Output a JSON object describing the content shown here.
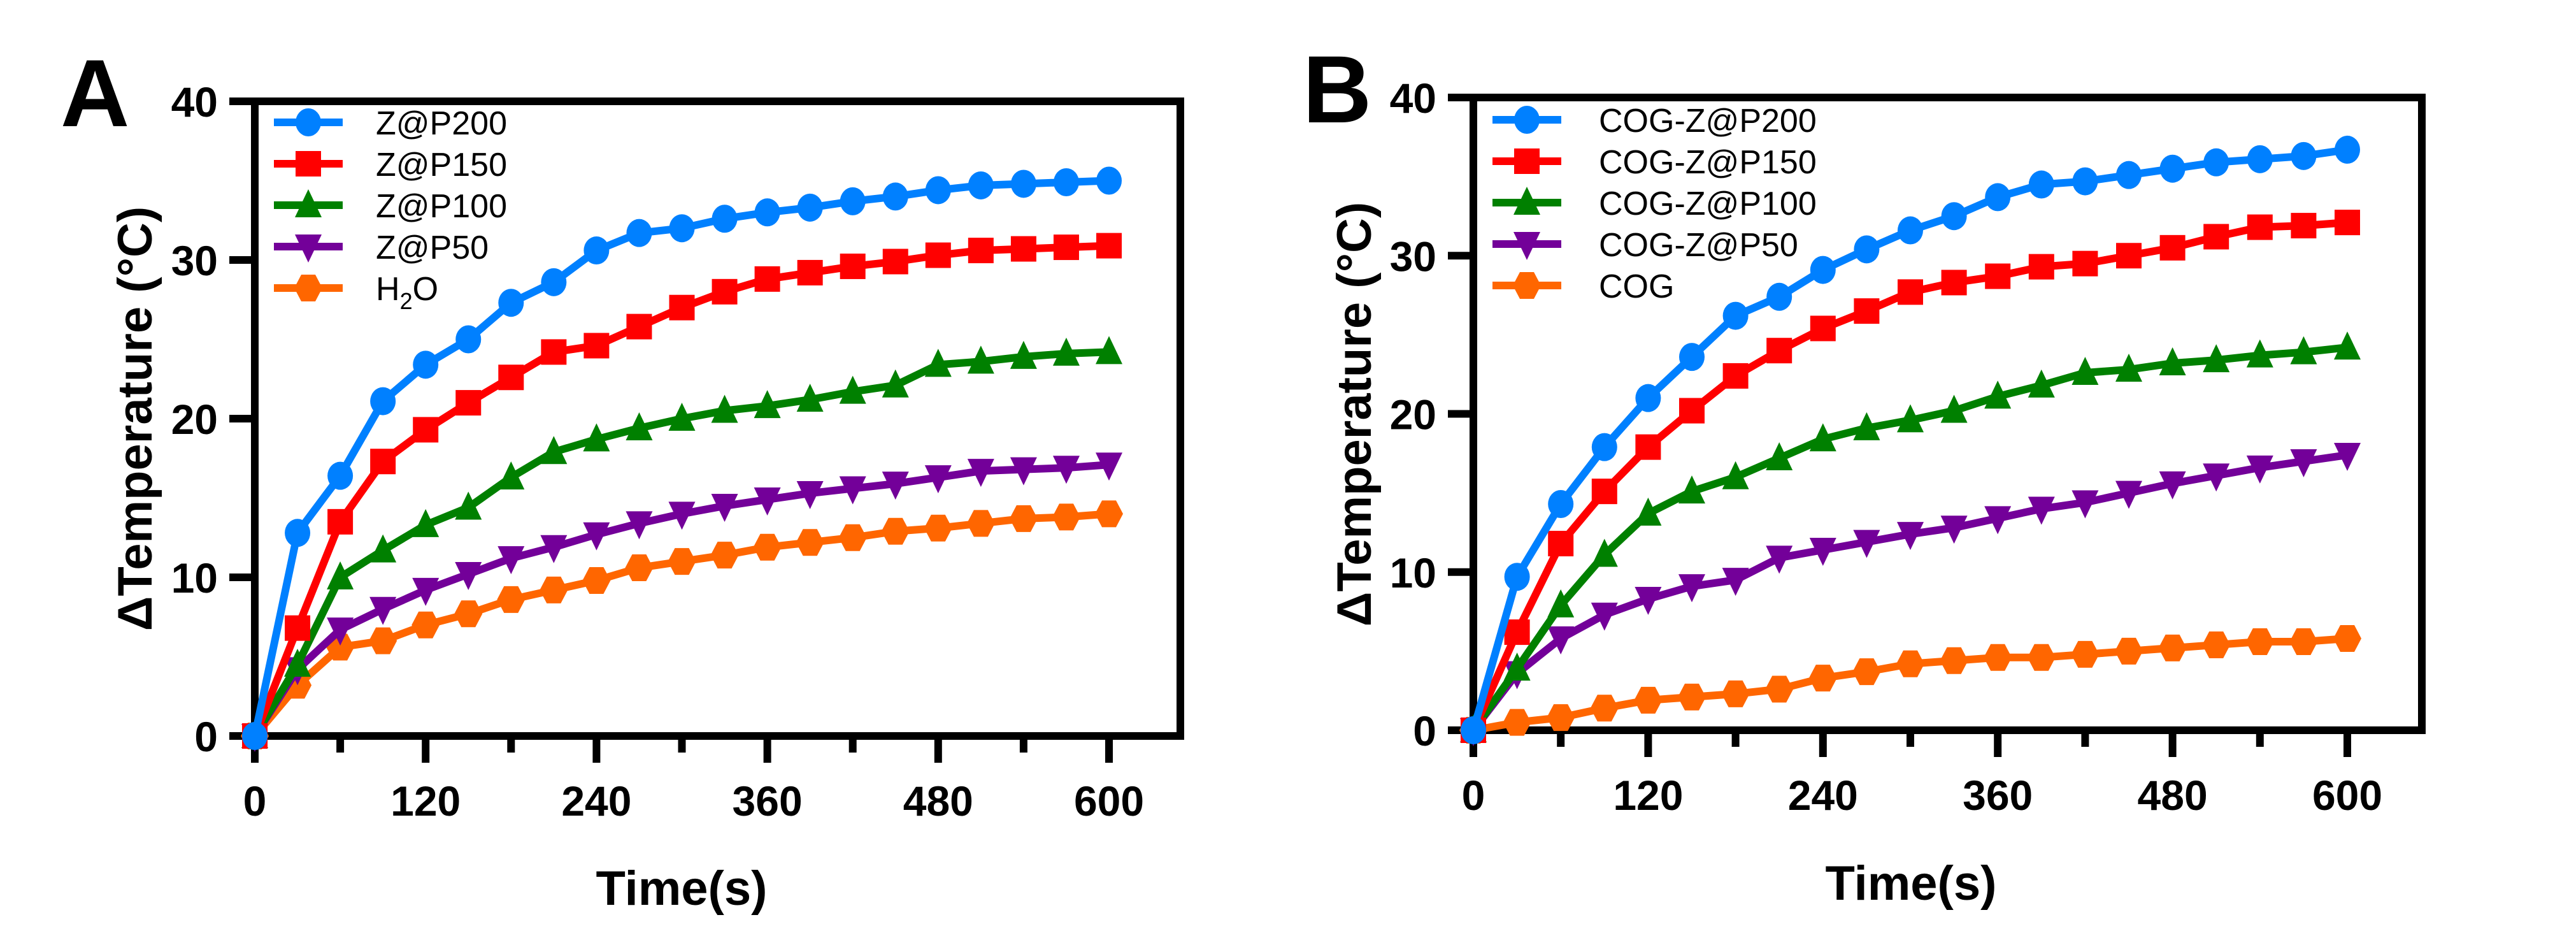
{
  "figure": {
    "panels": [
      "A",
      "B"
    ]
  },
  "chart_data": [
    {
      "panel": "A",
      "type": "line",
      "title": "",
      "xlabel": "Time(s)",
      "ylabel": "ΔTemperature (°C)",
      "xlim": [
        0,
        600
      ],
      "ylim": [
        0,
        40
      ],
      "xticks": [
        0,
        120,
        240,
        360,
        480,
        600
      ],
      "xminor": [
        60,
        180,
        300,
        420,
        540
      ],
      "yticks": [
        0,
        10,
        20,
        30,
        40
      ],
      "grid": false,
      "legend_position": "top-left",
      "x": [
        0,
        30,
        60,
        90,
        120,
        150,
        180,
        210,
        240,
        270,
        300,
        330,
        360,
        390,
        420,
        450,
        480,
        510,
        540,
        570,
        600
      ],
      "series": [
        {
          "name": "Z@P200",
          "legend_main": "Z@P200",
          "legend_sub": "",
          "legend_tail": "",
          "color": "#0080FF",
          "marker": "circle",
          "values": [
            0,
            12.8,
            16.4,
            21.1,
            23.4,
            25.0,
            27.3,
            28.6,
            30.6,
            31.7,
            32.0,
            32.6,
            33.0,
            33.3,
            33.7,
            34.0,
            34.4,
            34.7,
            34.8,
            34.9,
            35.0
          ]
        },
        {
          "name": "Z@P150",
          "legend_main": "Z@P150",
          "legend_sub": "",
          "legend_tail": "",
          "color": "#FF0000",
          "marker": "square",
          "values": [
            0,
            6.8,
            13.5,
            17.3,
            19.3,
            21.0,
            22.6,
            24.2,
            24.6,
            25.8,
            27.0,
            28.0,
            28.8,
            29.2,
            29.6,
            29.9,
            30.3,
            30.6,
            30.7,
            30.8,
            30.9
          ]
        },
        {
          "name": "Z@P100",
          "legend_main": "Z@P100",
          "legend_sub": "",
          "legend_tail": "",
          "color": "#008000",
          "marker": "triangle-up",
          "values": [
            0,
            4.5,
            10.0,
            11.7,
            13.3,
            14.4,
            16.3,
            17.9,
            18.7,
            19.4,
            20.0,
            20.5,
            20.8,
            21.2,
            21.7,
            22.1,
            23.4,
            23.6,
            23.9,
            24.1,
            24.2
          ]
        },
        {
          "name": "Z@P50",
          "legend_main": "Z@P50",
          "legend_sub": "",
          "legend_tail": "",
          "color": "#730099",
          "marker": "triangle-down",
          "values": [
            0,
            4.2,
            6.7,
            8.0,
            9.2,
            10.2,
            11.2,
            11.9,
            12.7,
            13.4,
            14.0,
            14.5,
            14.9,
            15.3,
            15.6,
            15.9,
            16.3,
            16.7,
            16.8,
            16.9,
            17.1
          ]
        },
        {
          "name": "H2O",
          "legend_main": "H",
          "legend_sub": "2",
          "legend_tail": "O",
          "color": "#FF6600",
          "marker": "hexagon",
          "values": [
            0,
            3.2,
            5.6,
            6.0,
            7.0,
            7.7,
            8.6,
            9.2,
            9.8,
            10.6,
            11.0,
            11.4,
            11.9,
            12.2,
            12.5,
            12.9,
            13.1,
            13.4,
            13.7,
            13.8,
            14.0
          ]
        }
      ]
    },
    {
      "panel": "B",
      "type": "line",
      "title": "",
      "xlabel": "Time(s)",
      "ylabel": "ΔTemperature (°C)",
      "xlim": [
        0,
        600
      ],
      "ylim": [
        0,
        40
      ],
      "xticks": [
        0,
        120,
        240,
        360,
        480,
        600
      ],
      "xminor": [
        60,
        180,
        300,
        420,
        540
      ],
      "yticks": [
        0,
        10,
        20,
        30,
        40
      ],
      "grid": false,
      "legend_position": "top-left",
      "x": [
        0,
        30,
        60,
        90,
        120,
        150,
        180,
        210,
        240,
        270,
        300,
        330,
        360,
        390,
        420,
        450,
        480,
        510,
        540,
        570,
        600
      ],
      "series": [
        {
          "name": "COG-Z@P200",
          "legend_main": "COG-Z@P200",
          "legend_sub": "",
          "legend_tail": "",
          "color": "#0080FF",
          "marker": "circle",
          "values": [
            0,
            9.7,
            14.3,
            17.9,
            21.0,
            23.6,
            26.2,
            27.4,
            29.1,
            30.4,
            31.6,
            32.5,
            33.7,
            34.5,
            34.7,
            35.1,
            35.5,
            35.9,
            36.1,
            36.3,
            36.7
          ]
        },
        {
          "name": "COG-Z@P150",
          "legend_main": "COG-Z@P150",
          "legend_sub": "",
          "legend_tail": "",
          "color": "#FF0000",
          "marker": "square",
          "values": [
            0,
            6.2,
            11.8,
            15.1,
            17.9,
            20.2,
            22.4,
            24.0,
            25.4,
            26.5,
            27.7,
            28.3,
            28.7,
            29.3,
            29.5,
            30.0,
            30.5,
            31.2,
            31.8,
            31.9,
            32.1
          ]
        },
        {
          "name": "COG-Z@P100",
          "legend_main": "COG-Z@P100",
          "legend_sub": "",
          "legend_tail": "",
          "color": "#008000",
          "marker": "triangle-up",
          "values": [
            0,
            3.9,
            7.9,
            11.1,
            13.7,
            15.1,
            16.0,
            17.2,
            18.4,
            19.1,
            19.6,
            20.2,
            21.1,
            21.8,
            22.6,
            22.8,
            23.2,
            23.4,
            23.7,
            23.9,
            24.2
          ]
        },
        {
          "name": "COG-Z@P50",
          "legend_main": "COG-Z@P50",
          "legend_sub": "",
          "legend_tail": "",
          "color": "#730099",
          "marker": "triangle-down",
          "values": [
            0,
            3.6,
            5.8,
            7.3,
            8.3,
            9.1,
            9.5,
            10.9,
            11.4,
            11.9,
            12.4,
            12.8,
            13.4,
            14.0,
            14.4,
            15.0,
            15.6,
            16.1,
            16.6,
            17.0,
            17.4
          ]
        },
        {
          "name": "COG",
          "legend_main": "COG",
          "legend_sub": "",
          "legend_tail": "",
          "color": "#FF6600",
          "marker": "hexagon",
          "values": [
            0,
            0.5,
            0.8,
            1.4,
            1.9,
            2.1,
            2.3,
            2.6,
            3.3,
            3.7,
            4.2,
            4.4,
            4.6,
            4.6,
            4.8,
            5.0,
            5.2,
            5.4,
            5.6,
            5.6,
            5.8
          ]
        }
      ]
    }
  ]
}
